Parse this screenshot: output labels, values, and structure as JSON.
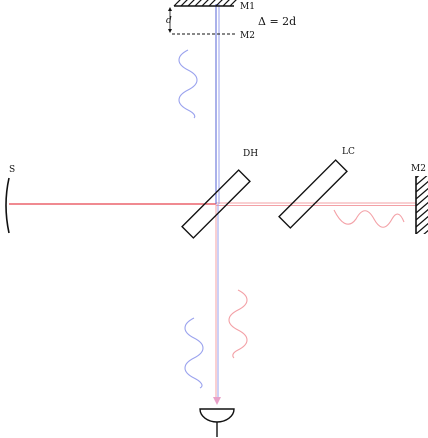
{
  "labels": {
    "source": "S",
    "beamsplitter": "DH",
    "compensator": "LC",
    "mirror_right": "M2",
    "mirror_top": "M1",
    "mirror_top_image": "M2",
    "spacing": "d",
    "path_difference": "Δ = 2d"
  },
  "colors": {
    "red_beam": "#e8454f",
    "red_wave": "#f3a0a6",
    "blue_beam": "#5563d6",
    "blue_wave": "#9aa2ee",
    "ink": "#111111"
  }
}
